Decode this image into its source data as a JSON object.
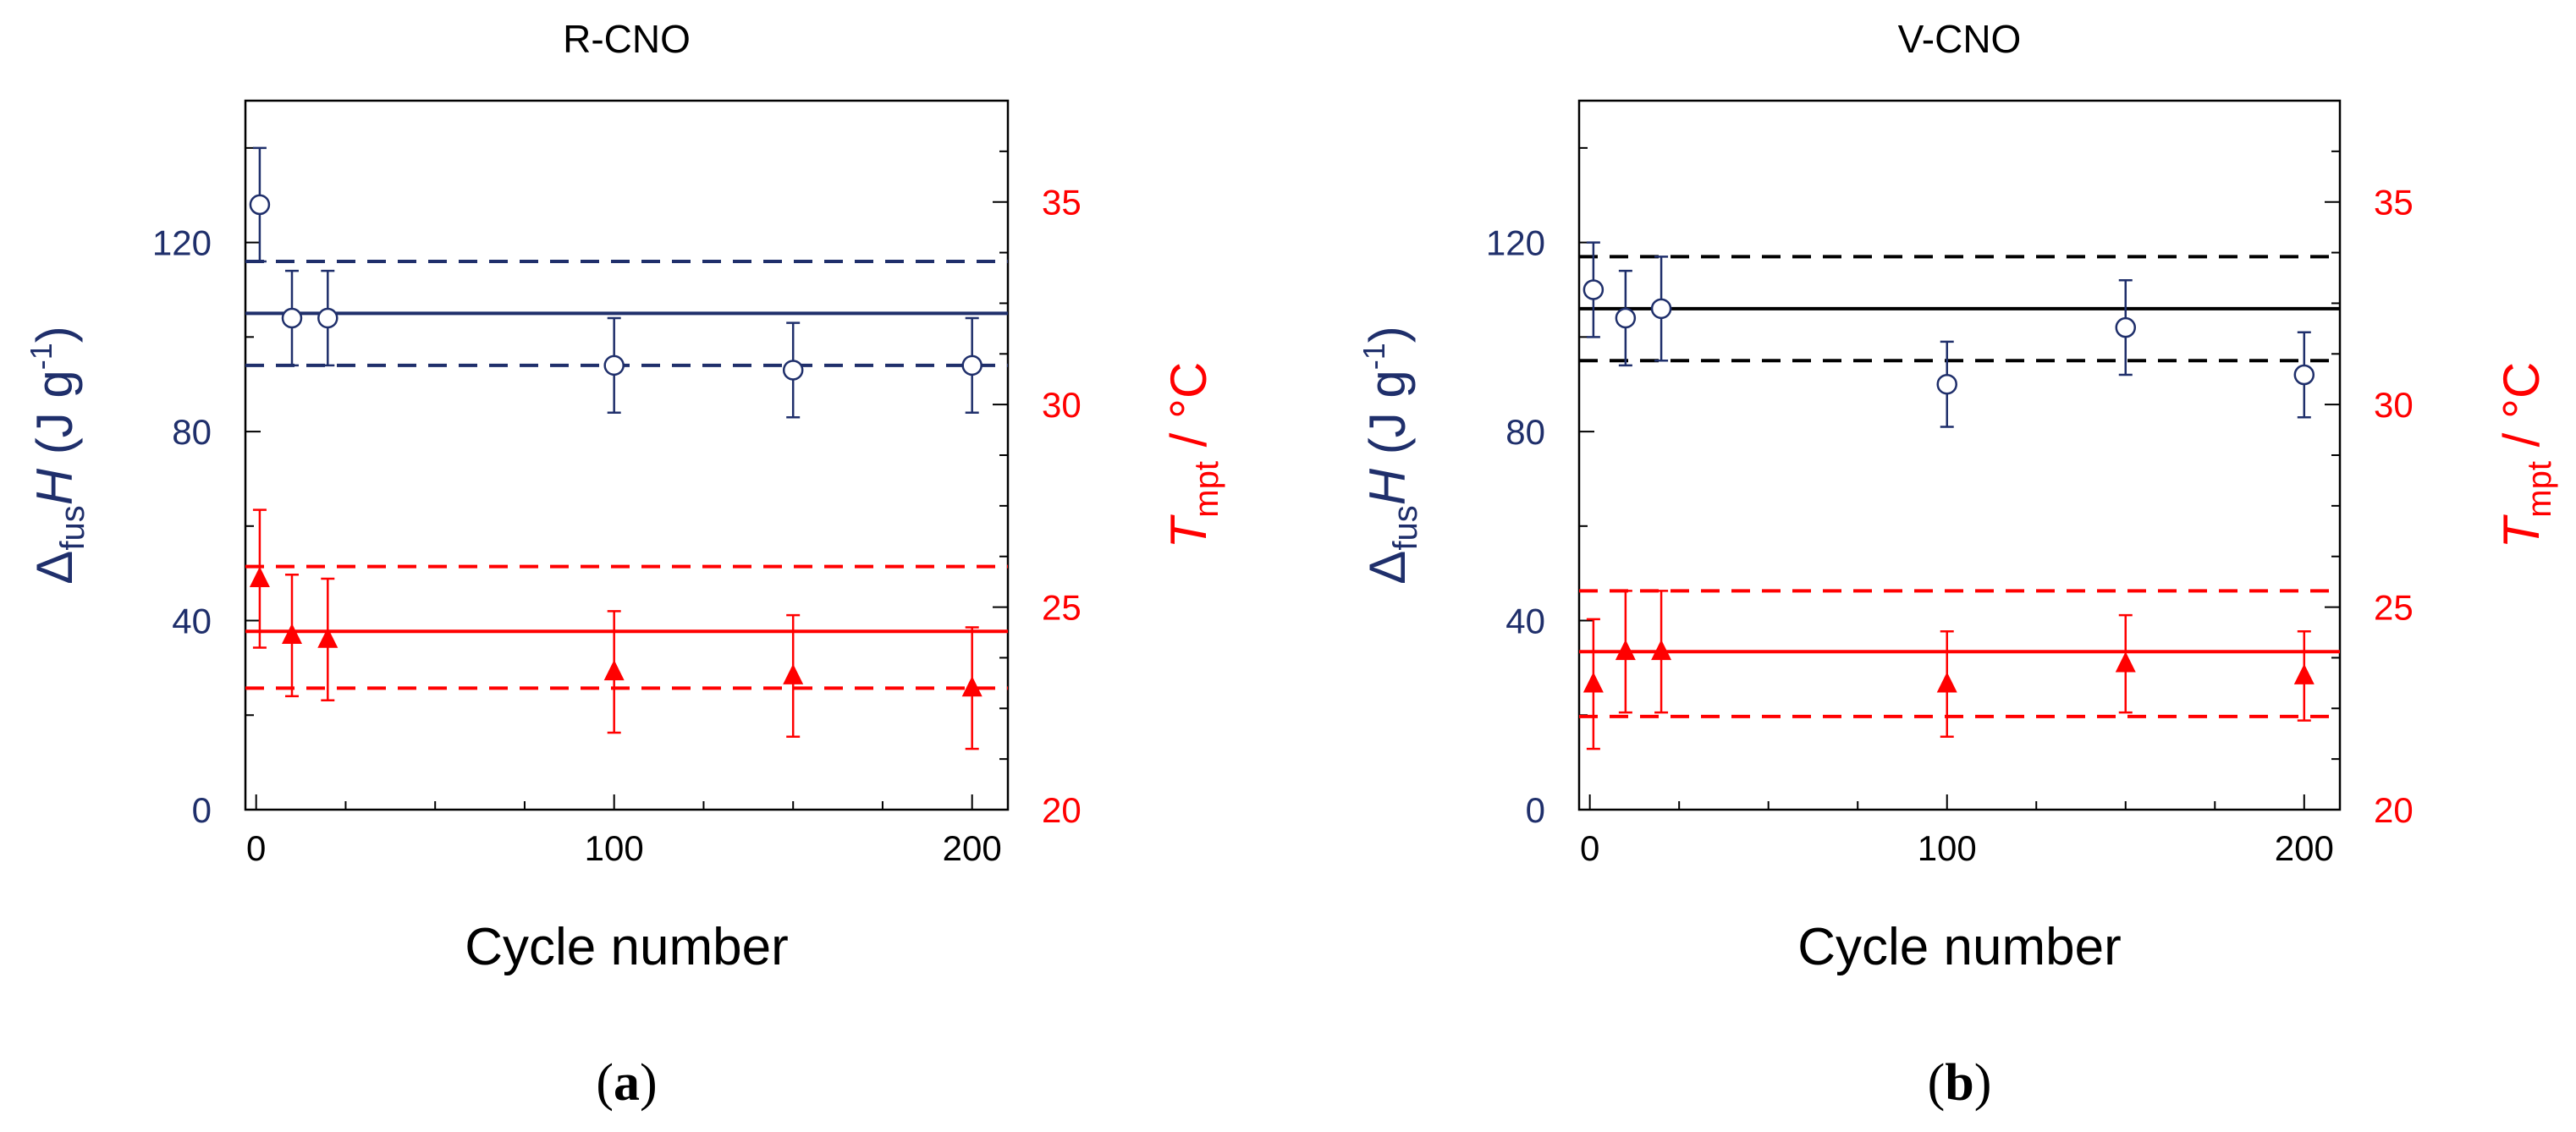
{
  "figure": {
    "description_colors": {
      "left_axis": "#1f2f6b",
      "right_axis": "#ff0000",
      "black": "#000000"
    }
  },
  "chart_data": [
    {
      "type": "scatter",
      "panel_label": "a",
      "title": "R-CNO",
      "xlabel": "Cycle number",
      "xlim": [
        -3,
        210
      ],
      "x_ticks": [
        0,
        100,
        200
      ],
      "ylabel_left": {
        "base": "Δ",
        "sub": "fus",
        "var": "H",
        "unit_pre": " (J g",
        "unit_sup": "-1",
        "unit_post": ")"
      },
      "ylim_left": [
        0,
        150
      ],
      "y_ticks_left": [
        0,
        40,
        80,
        120
      ],
      "ylabel_right": {
        "var": "T",
        "sub": "mpt",
        "unit": " / °C"
      },
      "ylim_right": [
        20,
        37.5
      ],
      "y_ticks_right": [
        20,
        25,
        30,
        35
      ],
      "mean_line_color_left": "#1f2f6b",
      "series": [
        {
          "name": "ΔfusH",
          "axis": "left",
          "marker": "open-circle",
          "color": "#1f2f6b",
          "x": [
            1,
            10,
            20,
            100,
            150,
            200
          ],
          "y": [
            128,
            104,
            104,
            94,
            93,
            94
          ],
          "err": [
            12,
            10,
            10,
            10,
            10,
            10
          ],
          "mean": 105,
          "band": [
            94,
            116
          ]
        },
        {
          "name": "Tmpt",
          "axis": "right",
          "marker": "filled-triangle",
          "color": "#ff0000",
          "x": [
            1,
            10,
            20,
            100,
            150,
            200
          ],
          "y": [
            25.7,
            24.3,
            24.2,
            23.4,
            23.3,
            23.0
          ],
          "err": [
            1.7,
            1.5,
            1.5,
            1.5,
            1.5,
            1.5
          ],
          "mean": 24.4,
          "band": [
            23.0,
            26.0
          ]
        }
      ]
    },
    {
      "type": "scatter",
      "panel_label": "b",
      "title": "V-CNO",
      "xlabel": "Cycle number",
      "xlim": [
        -3,
        210
      ],
      "x_ticks": [
        0,
        100,
        200
      ],
      "ylabel_left": {
        "base": "Δ",
        "sub": "fus",
        "var": "H",
        "unit_pre": " (J g",
        "unit_sup": "-1",
        "unit_post": ")"
      },
      "ylim_left": [
        0,
        150
      ],
      "y_ticks_left": [
        0,
        40,
        80,
        120
      ],
      "ylabel_right": {
        "var": "T",
        "sub": "mpt",
        "unit": " / °C"
      },
      "ylim_right": [
        20,
        37.5
      ],
      "y_ticks_right": [
        20,
        25,
        30,
        35
      ],
      "mean_line_color_left": "#000000",
      "series": [
        {
          "name": "ΔfusH",
          "axis": "left",
          "marker": "open-circle",
          "color": "#1f2f6b",
          "x": [
            1,
            10,
            20,
            100,
            150,
            200
          ],
          "y": [
            110,
            104,
            106,
            90,
            102,
            92
          ],
          "err": [
            10,
            10,
            11,
            9,
            10,
            9
          ],
          "mean": 106,
          "band": [
            95,
            117
          ]
        },
        {
          "name": "Tmpt",
          "axis": "right",
          "marker": "filled-triangle",
          "color": "#ff0000",
          "x": [
            1,
            10,
            20,
            100,
            150,
            200
          ],
          "y": [
            23.1,
            23.9,
            23.9,
            23.1,
            23.6,
            23.3
          ],
          "err": [
            1.6,
            1.5,
            1.5,
            1.3,
            1.2,
            1.1
          ],
          "mean": 23.9,
          "band": [
            22.3,
            25.4
          ]
        }
      ]
    }
  ]
}
